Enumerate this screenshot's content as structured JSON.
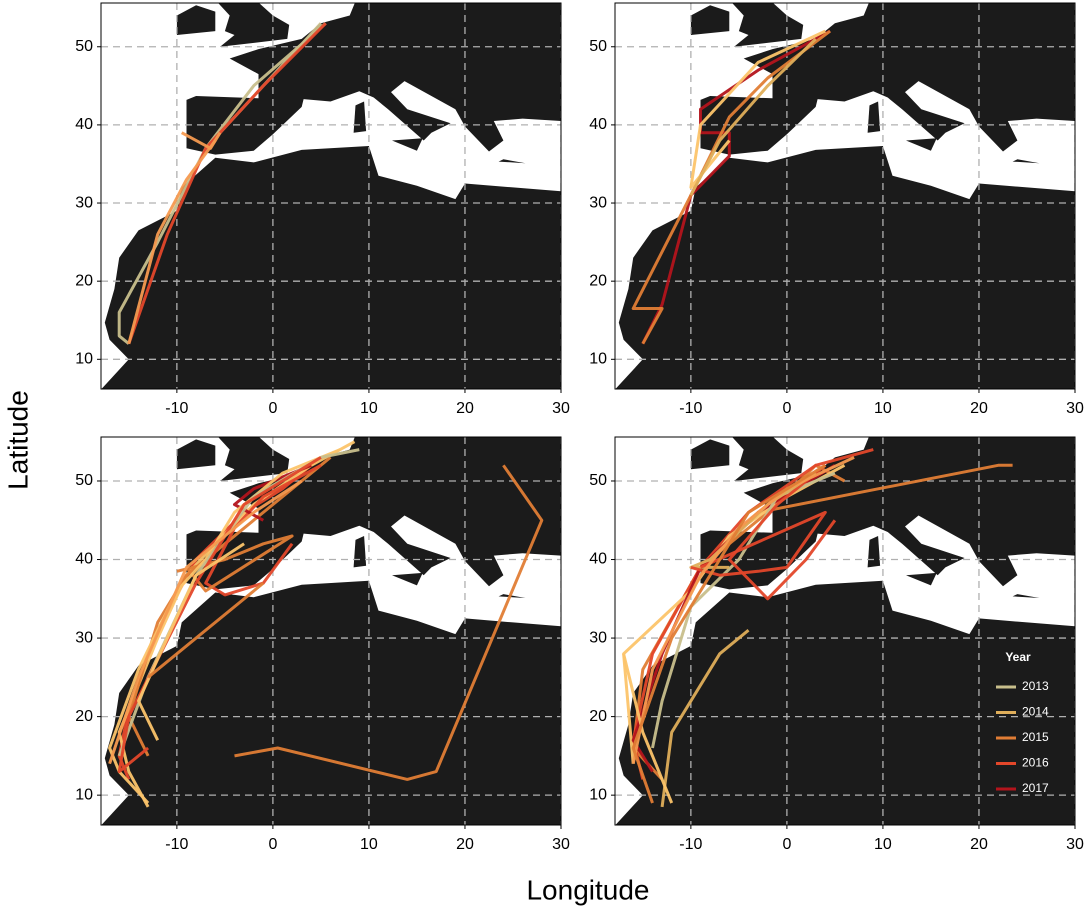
{
  "x_label": "Longitude",
  "y_label": "Latitude",
  "chart_data": [
    {
      "type": "line",
      "xlim": [
        -17.9,
        30
      ],
      "ylim": [
        6.2,
        55.6
      ],
      "xticks": [
        -10,
        0,
        10,
        20,
        30
      ],
      "yticks": [
        10,
        20,
        30,
        40,
        50
      ],
      "grid": true,
      "tracks": [
        {
          "color": "#c8bf8c",
          "x": [
            5,
            -7,
            -12,
            -16,
            -16,
            -15
          ],
          "y": [
            53,
            37,
            25,
            16,
            13,
            12
          ]
        },
        {
          "color": "#c8bf8c",
          "x": [
            -7,
            -2,
            5.5
          ],
          "y": [
            37,
            45,
            53
          ]
        },
        {
          "color": "#e3472a",
          "x": [
            5.5,
            -1,
            -7,
            -11,
            -15
          ],
          "y": [
            53,
            45,
            37,
            26,
            12
          ]
        },
        {
          "color": "#f59a50",
          "x": [
            -9.5,
            -6.5,
            -5.5
          ],
          "y": [
            39,
            37,
            39
          ]
        },
        {
          "color": "#f59a50",
          "x": [
            -6,
            -9,
            -12,
            -15
          ],
          "y": [
            38,
            33,
            26,
            12
          ]
        }
      ]
    },
    {
      "type": "line",
      "xlim": [
        -17.9,
        30
      ],
      "ylim": [
        6.2,
        55.6
      ],
      "xticks": [
        -10,
        0,
        10,
        20,
        30
      ],
      "yticks": [
        10,
        20,
        30,
        40,
        50
      ],
      "grid": true,
      "tracks": [
        {
          "color": "#b3141c",
          "x": [
            4.5,
            -3,
            -9,
            -9,
            -6,
            -6,
            -10,
            -13,
            -15
          ],
          "y": [
            52,
            47,
            42,
            39,
            39,
            36,
            31,
            17,
            12
          ]
        },
        {
          "color": "#e07d35",
          "x": [
            4.5,
            -2,
            -6,
            -10,
            -16,
            -13,
            -15
          ],
          "y": [
            52,
            46,
            41,
            31,
            16.5,
            16.5,
            12
          ]
        },
        {
          "color": "#fcc46a",
          "x": [
            4,
            -3,
            -9,
            -10,
            -8,
            -6
          ],
          "y": [
            52,
            48,
            40,
            32,
            35,
            38
          ]
        },
        {
          "color": "#dfae5a",
          "x": [
            3,
            -2,
            -7,
            -10
          ],
          "y": [
            51,
            45,
            38,
            31
          ]
        }
      ]
    },
    {
      "type": "line",
      "xlim": [
        -17.9,
        30
      ],
      "ylim": [
        6.2,
        55.6
      ],
      "xticks": [
        -10,
        0,
        10,
        20,
        30
      ],
      "yticks": [
        10,
        20,
        30,
        40,
        50
      ],
      "grid": true,
      "tracks": [
        {
          "color": "#e07d35",
          "x": [
            24,
            28,
            17,
            14,
            0.5,
            -4
          ],
          "y": [
            52,
            45,
            13,
            12,
            16,
            15
          ]
        },
        {
          "color": "#e3472a",
          "x": [
            5,
            1,
            -3,
            -8,
            -12,
            -15,
            -16,
            -15
          ],
          "y": [
            53,
            49,
            46,
            40,
            31,
            21,
            15,
            12
          ]
        },
        {
          "color": "#fcc46a",
          "x": [
            8.5,
            4,
            -2,
            -6,
            -9,
            -12,
            -16,
            -15,
            -13
          ],
          "y": [
            55,
            52,
            47,
            42,
            38,
            30,
            18,
            13,
            8.5
          ]
        },
        {
          "color": "#e07d35",
          "x": [
            6,
            2,
            -5,
            -9,
            -12,
            -15,
            -13
          ],
          "y": [
            53,
            49,
            42,
            38,
            32,
            20,
            15
          ]
        },
        {
          "color": "#e3472a",
          "x": [
            5,
            -1,
            -4,
            -7,
            -5,
            -1,
            2
          ],
          "y": [
            52,
            48,
            44,
            37,
            35.5,
            37,
            42
          ]
        },
        {
          "color": "#b3141c",
          "x": [
            4,
            -2,
            -4,
            -1
          ],
          "y": [
            52,
            49,
            47,
            45
          ]
        },
        {
          "color": "#e07d35",
          "x": [
            -10,
            -5,
            -1,
            2,
            -7,
            -9
          ],
          "y": [
            38.5,
            40,
            42,
            43,
            36,
            39
          ]
        },
        {
          "color": "#fcc46a",
          "x": [
            7,
            1,
            -4,
            -7,
            -10,
            -14,
            -17,
            -16,
            -13
          ],
          "y": [
            54,
            51,
            46,
            40,
            36,
            26,
            16,
            13,
            9
          ]
        },
        {
          "color": "#c8bf8c",
          "x": [
            9,
            5,
            -2,
            -8,
            -13,
            -16
          ],
          "y": [
            54,
            53,
            48,
            38,
            25,
            15
          ]
        },
        {
          "color": "#e3472a",
          "x": [
            5,
            -3,
            -8,
            -15,
            -16,
            -13
          ],
          "y": [
            53,
            47,
            37,
            20,
            13,
            16
          ]
        },
        {
          "color": "#f59a50",
          "x": [
            3,
            -2,
            -9,
            -14,
            -17
          ],
          "y": [
            50,
            46,
            39,
            25,
            14
          ]
        },
        {
          "color": "#fcc46a",
          "x": [
            -3,
            -8,
            -14,
            -12
          ],
          "y": [
            42,
            38,
            22,
            17
          ]
        },
        {
          "color": "#e07d35",
          "x": [
            -1,
            -13
          ],
          "y": [
            37,
            25
          ]
        }
      ]
    },
    {
      "type": "line",
      "xlim": [
        -17.9,
        30
      ],
      "ylim": [
        6.2,
        55.6
      ],
      "xticks": [
        -10,
        0,
        10,
        20,
        30
      ],
      "yticks": [
        10,
        20,
        30,
        40,
        50
      ],
      "grid": true,
      "tracks": [
        {
          "color": "#e07d35",
          "x": [
            23.5,
            22,
            -3,
            -9
          ],
          "y": [
            52,
            52,
            46,
            39
          ]
        },
        {
          "color": "#e07d35",
          "x": [
            6,
            3,
            -2,
            -9,
            -15,
            -16,
            -13
          ],
          "y": [
            50,
            52,
            46,
            39,
            26,
            16,
            12
          ]
        },
        {
          "color": "#e3472a",
          "x": [
            9,
            3,
            -4,
            -9,
            -14,
            -16,
            -15
          ],
          "y": [
            54,
            52,
            46,
            39,
            28,
            17,
            12
          ]
        },
        {
          "color": "#fcc46a",
          "x": [
            6,
            0,
            -6,
            -10,
            -17,
            -16
          ],
          "y": [
            52,
            48,
            43,
            36,
            28,
            14
          ]
        },
        {
          "color": "#b3141c",
          "x": [
            5,
            -3,
            -9,
            -13,
            -16,
            -14
          ],
          "y": [
            52,
            46,
            39,
            28,
            17,
            13
          ]
        },
        {
          "color": "#c8bf8c",
          "x": [
            5,
            -1,
            -5,
            -10,
            -13,
            -14
          ],
          "y": [
            51,
            48,
            40,
            34,
            22,
            16
          ]
        },
        {
          "color": "#dfae5a",
          "x": [
            -4,
            -7,
            -12,
            -13
          ],
          "y": [
            31,
            28,
            18,
            8.5
          ]
        },
        {
          "color": "#fcc46a",
          "x": [
            -17,
            -15,
            -13,
            -12
          ],
          "y": [
            28,
            18,
            12,
            9
          ]
        },
        {
          "color": "#e3472a",
          "x": [
            4,
            -1,
            -6,
            -2,
            2,
            5
          ],
          "y": [
            52,
            47,
            40,
            35,
            40,
            45
          ]
        },
        {
          "color": "#dfae5a",
          "x": [
            3,
            -2,
            -8,
            -10,
            -6
          ],
          "y": [
            51,
            47,
            40,
            39,
            39
          ]
        },
        {
          "color": "#e3472a",
          "x": [
            -10,
            -7,
            -3,
            0,
            4,
            -9
          ],
          "y": [
            39,
            38,
            38.5,
            39,
            46,
            39
          ]
        },
        {
          "color": "#f59a50",
          "x": [
            7,
            0,
            -5,
            -9,
            -14,
            -16
          ],
          "y": [
            53,
            49,
            44,
            38,
            26,
            14
          ]
        },
        {
          "color": "#e07d35",
          "x": [
            4,
            -4,
            -12,
            -16,
            -14
          ],
          "y": [
            52,
            46,
            30,
            16,
            9
          ]
        }
      ],
      "legend": {
        "title": "Year",
        "items": [
          {
            "name": "2013",
            "color": "#c8bf8c"
          },
          {
            "name": "2014",
            "color": "#dfae5a"
          },
          {
            "name": "2015",
            "color": "#e07d35"
          },
          {
            "name": "2016",
            "color": "#e3472a"
          },
          {
            "name": "2017",
            "color": "#b3141c"
          }
        ]
      }
    }
  ]
}
